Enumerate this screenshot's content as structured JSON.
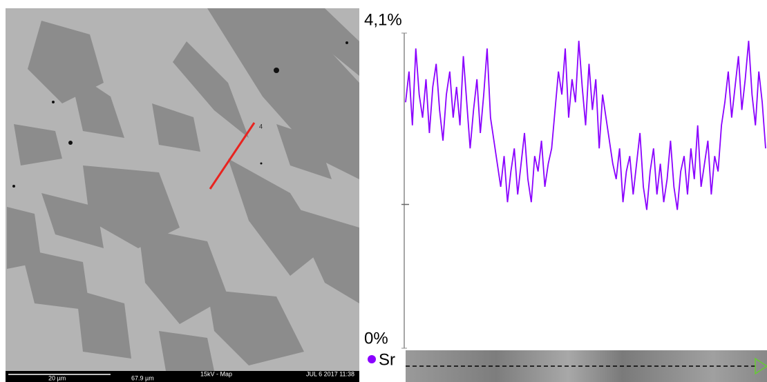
{
  "sem_image": {
    "line_label": "4",
    "scale_bar": "20 µm",
    "conditions": "15kV - Map",
    "date": "JUL 6 2017 11:38",
    "field_width": "67.9 µm"
  },
  "chart_data": {
    "type": "line",
    "series": [
      {
        "name": "Sr",
        "color": "#8a00ff",
        "values": [
          3.2,
          3.6,
          2.9,
          3.9,
          3.3,
          3.0,
          3.5,
          2.8,
          3.4,
          3.7,
          3.1,
          2.7,
          3.3,
          3.6,
          3.0,
          3.4,
          2.9,
          3.8,
          3.2,
          2.6,
          3.1,
          3.5,
          2.8,
          3.3,
          3.9,
          3.0,
          2.7,
          2.4,
          2.1,
          2.5,
          1.9,
          2.3,
          2.6,
          2.0,
          2.4,
          2.8,
          2.2,
          1.9,
          2.5,
          2.3,
          2.7,
          2.1,
          2.4,
          2.6,
          3.1,
          3.6,
          3.3,
          3.9,
          3.0,
          3.5,
          3.2,
          4.0,
          3.4,
          2.9,
          3.7,
          3.1,
          3.5,
          2.6,
          3.3,
          3.0,
          2.7,
          2.4,
          2.2,
          2.6,
          1.9,
          2.3,
          2.5,
          2.0,
          2.4,
          2.8,
          2.1,
          1.8,
          2.3,
          2.6,
          2.0,
          2.4,
          1.9,
          2.2,
          2.7,
          2.1,
          1.8,
          2.3,
          2.5,
          2.0,
          2.6,
          2.2,
          2.9,
          2.1,
          2.4,
          2.7,
          2.0,
          2.5,
          2.3,
          2.9,
          3.2,
          3.6,
          3.0,
          3.4,
          3.8,
          3.1,
          3.5,
          4.0,
          3.3,
          2.9,
          3.6,
          3.2,
          2.6
        ]
      }
    ],
    "ylim": [
      0,
      4.1
    ],
    "yticks": [
      {
        "value": 0,
        "label": "0%"
      },
      {
        "value": 4.1,
        "label": "4,1%"
      }
    ]
  }
}
